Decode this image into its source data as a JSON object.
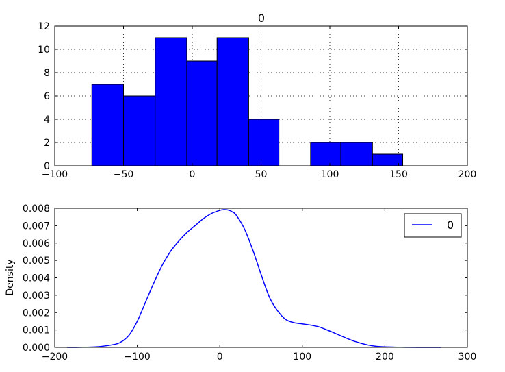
{
  "chart_data": [
    {
      "type": "bar",
      "title": "0",
      "xlabel": "",
      "ylabel": "",
      "xlim": [
        -100,
        200
      ],
      "ylim": [
        0,
        12
      ],
      "grid": true,
      "bar_color": "#0000ff",
      "xticks": [
        -100,
        -50,
        0,
        50,
        100,
        150,
        200
      ],
      "xtick_labels": [
        "−100",
        "−50",
        "0",
        "50",
        "100",
        "150",
        "200"
      ],
      "yticks": [
        0,
        2,
        4,
        6,
        8,
        10,
        12
      ],
      "ytick_labels": [
        "0",
        "2",
        "4",
        "6",
        "8",
        "10",
        "12"
      ],
      "bins": [
        {
          "start": -73,
          "end": -50,
          "count": 7
        },
        {
          "start": -50,
          "end": -27,
          "count": 6
        },
        {
          "start": -27,
          "end": -4,
          "count": 11
        },
        {
          "start": -4,
          "end": 18,
          "count": 9
        },
        {
          "start": 18,
          "end": 41,
          "count": 11
        },
        {
          "start": 41,
          "end": 63,
          "count": 4
        },
        {
          "start": 63,
          "end": 86,
          "count": 0
        },
        {
          "start": 86,
          "end": 108,
          "count": 2
        },
        {
          "start": 108,
          "end": 131,
          "count": 2
        },
        {
          "start": 131,
          "end": 153,
          "count": 1
        }
      ]
    },
    {
      "type": "line",
      "title": "",
      "xlabel": "",
      "ylabel": "Density",
      "xlim": [
        -200,
        300
      ],
      "ylim": [
        0,
        0.008
      ],
      "grid": false,
      "xticks": [
        -200,
        -100,
        0,
        100,
        200,
        300
      ],
      "xtick_labels": [
        "−200",
        "−100",
        "0",
        "100",
        "200",
        "300"
      ],
      "yticks": [
        0,
        0.001,
        0.002,
        0.003,
        0.004,
        0.005,
        0.006,
        0.007,
        0.008
      ],
      "ytick_labels": [
        "0.000",
        "0.001",
        "0.002",
        "0.003",
        "0.004",
        "0.005",
        "0.006",
        "0.007",
        "0.008"
      ],
      "legend_position": "top-right",
      "series": [
        {
          "name": "0",
          "color": "#0000ff",
          "x": [
            -185,
            -170,
            -150,
            -130,
            -120,
            -110,
            -100,
            -90,
            -80,
            -70,
            -60,
            -50,
            -40,
            -30,
            -20,
            -10,
            0,
            5,
            10,
            15,
            20,
            30,
            40,
            50,
            60,
            70,
            80,
            90,
            100,
            110,
            120,
            130,
            140,
            150,
            160,
            170,
            180,
            190,
            200,
            220,
            240,
            268
          ],
          "y": [
            0,
            5e-06,
            3e-05,
            0.00015,
            0.0003,
            0.0007,
            0.0015,
            0.0026,
            0.0037,
            0.0047,
            0.0055,
            0.0061,
            0.0066,
            0.007,
            0.0074,
            0.0077,
            0.00788,
            0.00792,
            0.0079,
            0.0078,
            0.0076,
            0.0068,
            0.0056,
            0.0042,
            0.0029,
            0.0021,
            0.0016,
            0.00142,
            0.00135,
            0.00128,
            0.00118,
            0.001,
            0.0008,
            0.0006,
            0.0004,
            0.00025,
            0.00013,
            6e-05,
            3e-05,
            8e-06,
            2e-06,
            0
          ]
        }
      ]
    }
  ]
}
